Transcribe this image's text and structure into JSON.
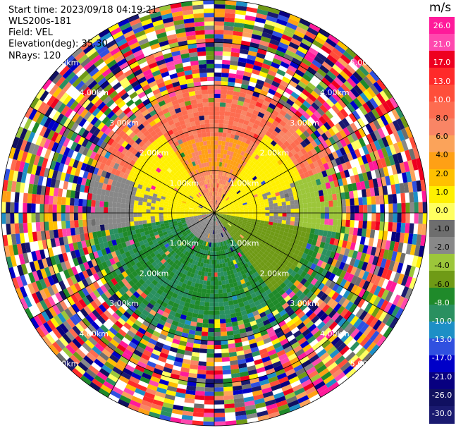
{
  "header": {
    "start_time": "Start time: 2023/09/18 04:19:21",
    "instrument": "WLS200s-181",
    "field": "Field: VEL",
    "elevation": "Elevation(deg): 35.30",
    "nrays": "NRays: 120"
  },
  "colorbar": {
    "unit": "m/s",
    "ticks": [
      "26.0",
      "21.0",
      "17.0",
      "13.0",
      "10.0",
      "8.0",
      "6.0",
      "4.0",
      "2.0",
      "1.0",
      "0.0",
      "-1.0",
      "-2.0",
      "-4.0",
      "-6.0",
      "-8.0",
      "-10.0",
      "-13.0",
      "-17.0",
      "-21.0",
      "-26.0",
      "-30.0"
    ],
    "colors": [
      "#ff1a9a",
      "#ff48ae",
      "#ee0020",
      "#ff2a2a",
      "#ff4e3a",
      "#fd6c50",
      "#f98565",
      "#fba35a",
      "#ffa015",
      "#ffc000",
      "#fff000",
      "#ffff60",
      "#6e6e6e",
      "#888888",
      "#9cc63a",
      "#6f9a16",
      "#1f8a2a",
      "#2a9060",
      "#1d8fc6",
      "#3050e0",
      "#0000c8",
      "#080080",
      "#101060",
      "#1a1a70"
    ]
  },
  "chart_data": {
    "type": "polar-ppi",
    "field": "VEL",
    "unit": "m/s",
    "nrays": 120,
    "range_labels": [
      "1.00km",
      "2.00km",
      "3.00km",
      "4.00km",
      "5.00km"
    ],
    "range_rings_km": [
      1,
      2,
      3,
      4,
      5
    ],
    "vmin": -30,
    "vmax": 26
  }
}
